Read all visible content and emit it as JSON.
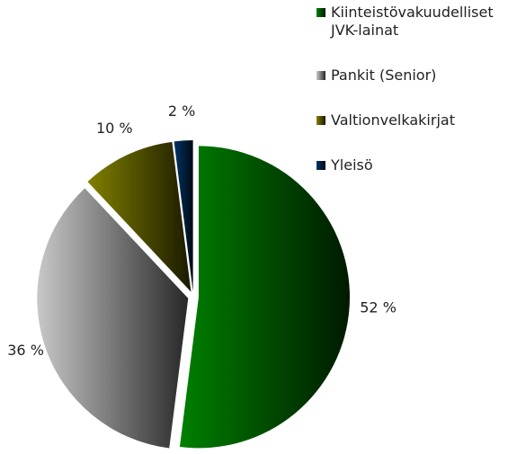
{
  "chart_data": {
    "type": "pie",
    "categories": [
      "Kiinteistövakuudelliset JVK-lainat",
      "Pankit (Senior)",
      "Valtionvelkakirjat",
      "Yleisö"
    ],
    "values": [
      52,
      36,
      10,
      2
    ],
    "value_labels": [
      "52 %",
      "36 %",
      "10 %",
      "2 %"
    ],
    "colors": [
      "#008000",
      "#c8c8c8",
      "#808000",
      "#003366"
    ],
    "legend": "top-right"
  }
}
